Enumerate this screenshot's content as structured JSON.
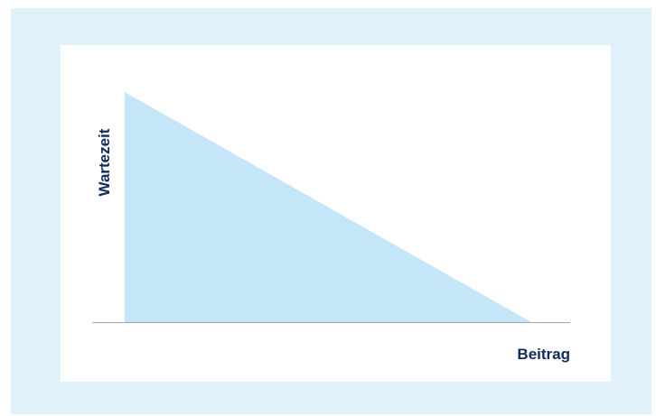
{
  "chart_data": {
    "type": "area",
    "xlabel": "Beitrag",
    "ylabel": "Wartezeit",
    "x": [
      0,
      1
    ],
    "values": [
      1,
      0
    ],
    "xlim": [
      0,
      1
    ],
    "ylim": [
      0,
      1
    ],
    "grid": false,
    "area_color": "#c5e5f9",
    "axis_color": "#a6a6a6",
    "label_color": "#0f2a5c"
  }
}
